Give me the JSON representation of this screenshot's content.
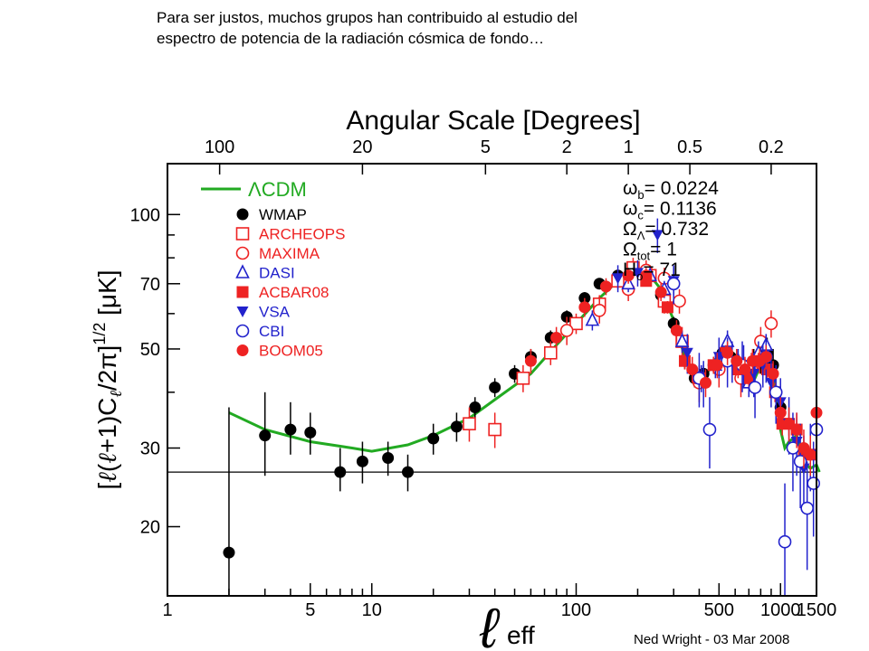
{
  "caption": {
    "line1": "Para ser justos, muchos grupos han contribuido al estudio del",
    "line2": "espectro de potencia de la radiación cósmica de fondo…"
  },
  "chart_data": {
    "type": "scatter",
    "title_top": "Angular Scale [Degrees]",
    "top_axis_ticks": [
      "100",
      "20",
      "5",
      "2",
      "1",
      "0.5",
      "0.2"
    ],
    "top_axis_ell": [
      1.8,
      9,
      36,
      90,
      180,
      360,
      900
    ],
    "x_axis_log": true,
    "y_axis_log": true,
    "xlim": [
      1,
      1500
    ],
    "ylim": [
      14,
      130
    ],
    "x_ticks": [
      1,
      5,
      10,
      100,
      500,
      1000,
      1500
    ],
    "x_tick_labels": [
      "1",
      "5",
      "10",
      "100",
      "500",
      "1000",
      "1500"
    ],
    "y_ticks": [
      20,
      30,
      50,
      70,
      100
    ],
    "y_tick_labels": [
      "20",
      "30",
      "50",
      "70",
      "100"
    ],
    "xlabel_symbol": "ℓ",
    "xlabel_sub": "eff",
    "ylabel_parts": [
      "[",
      "ℓ",
      "(",
      "ℓ",
      "+1)C",
      "ℓ",
      "/2π]",
      "1/2",
      " [μK]"
    ],
    "reference_line_y": 26.5,
    "footer": "Ned Wright - 03 Mar 2008",
    "params": [
      {
        "sym": "ω",
        "sub": "b",
        "text": "= 0.0224"
      },
      {
        "sym": "ω",
        "sub": "c",
        "text": "= 0.1136"
      },
      {
        "sym": "Ω",
        "sub": "Λ",
        "text": "= 0.732"
      },
      {
        "sym": "Ω",
        "sub": "tot",
        "text": "= 1"
      },
      {
        "sym": "H",
        "sub": "o",
        "text": "= 71"
      }
    ],
    "model": {
      "name": "ΛCDM",
      "color": "#22aa22",
      "points": [
        [
          2,
          36
        ],
        [
          3,
          33
        ],
        [
          5,
          31
        ],
        [
          8,
          30
        ],
        [
          10,
          29.5
        ],
        [
          15,
          30.5
        ],
        [
          20,
          32
        ],
        [
          30,
          35
        ],
        [
          40,
          38.5
        ],
        [
          60,
          44
        ],
        [
          80,
          51
        ],
        [
          100,
          57
        ],
        [
          130,
          65
        ],
        [
          160,
          71
        ],
        [
          200,
          74
        ],
        [
          230,
          73
        ],
        [
          260,
          68
        ],
        [
          300,
          58
        ],
        [
          350,
          46
        ],
        [
          400,
          42
        ],
        [
          450,
          45
        ],
        [
          500,
          49
        ],
        [
          550,
          50
        ],
        [
          600,
          46
        ],
        [
          660,
          42
        ],
        [
          700,
          41
        ],
        [
          750,
          43
        ],
        [
          800,
          46
        ],
        [
          850,
          48
        ],
        [
          900,
          46
        ],
        [
          950,
          40
        ],
        [
          1000,
          33
        ],
        [
          1050,
          30
        ],
        [
          1100,
          31
        ],
        [
          1200,
          32
        ],
        [
          1300,
          28
        ],
        [
          1400,
          27
        ],
        [
          1500,
          27.5
        ],
        [
          1550,
          26.5
        ]
      ]
    },
    "series": [
      {
        "name": "WMAP",
        "marker": "filled-circle",
        "color": "#000000",
        "points": [
          [
            2,
            17.5,
            14,
            37
          ],
          [
            3,
            32,
            26,
            40
          ],
          [
            4,
            33,
            29,
            38
          ],
          [
            5,
            32.5,
            29,
            36
          ],
          [
            7,
            26.5,
            24,
            30
          ],
          [
            9,
            28,
            25,
            31
          ],
          [
            12,
            28.5,
            26,
            31
          ],
          [
            15,
            26.5,
            24,
            29
          ],
          [
            20,
            31.5,
            29,
            34
          ],
          [
            26,
            33.5,
            31,
            36
          ],
          [
            32,
            37,
            35,
            39
          ],
          [
            40,
            41,
            39,
            43
          ],
          [
            50,
            44,
            42,
            46
          ],
          [
            60,
            48,
            46,
            50
          ],
          [
            75,
            53,
            51,
            55
          ],
          [
            90,
            59,
            57,
            61
          ],
          [
            110,
            65,
            63,
            67
          ],
          [
            130,
            70,
            68,
            72
          ],
          [
            160,
            73,
            71,
            75
          ],
          [
            190,
            75,
            73,
            77
          ],
          [
            220,
            72,
            70,
            74
          ],
          [
            260,
            66,
            64,
            68
          ],
          [
            300,
            57,
            55,
            59
          ],
          [
            340,
            47,
            45,
            49
          ],
          [
            380,
            43,
            41,
            45
          ],
          [
            420,
            44,
            42,
            46
          ],
          [
            470,
            46,
            44,
            48
          ],
          [
            520,
            49,
            47,
            51
          ],
          [
            570,
            48,
            46,
            50
          ],
          [
            620,
            46,
            44,
            48
          ],
          [
            680,
            44,
            41,
            47
          ],
          [
            740,
            47,
            44,
            50
          ],
          [
            800,
            47,
            44,
            50
          ],
          [
            860,
            49,
            45,
            53
          ],
          [
            920,
            46,
            42,
            50
          ],
          [
            1000,
            37,
            33,
            41
          ]
        ]
      },
      {
        "name": "ARCHEOPS",
        "marker": "open-square",
        "color": "#ee2222",
        "points": [
          [
            30,
            34,
            31,
            37
          ],
          [
            40,
            33,
            30,
            36
          ],
          [
            55,
            43,
            40,
            46
          ],
          [
            75,
            49,
            46,
            52
          ],
          [
            100,
            57,
            54,
            60
          ],
          [
            130,
            63,
            60,
            66
          ],
          [
            160,
            71,
            68,
            74
          ],
          [
            190,
            76,
            72,
            80
          ],
          [
            230,
            73,
            69,
            77
          ],
          [
            270,
            64,
            60,
            68
          ],
          [
            330,
            52,
            48,
            56
          ]
        ]
      },
      {
        "name": "MAXIMA",
        "marker": "open-circle",
        "color": "#ee2222",
        "points": [
          [
            90,
            55,
            51,
            59
          ],
          [
            130,
            61,
            57,
            65
          ],
          [
            180,
            68,
            64,
            72
          ],
          [
            220,
            75,
            71,
            79
          ],
          [
            270,
            72,
            68,
            76
          ],
          [
            320,
            64,
            60,
            68
          ],
          [
            400,
            42,
            38,
            46
          ],
          [
            500,
            45,
            41,
            49
          ],
          [
            640,
            43,
            39,
            47
          ],
          [
            720,
            45,
            41,
            49
          ],
          [
            800,
            52,
            48,
            56
          ],
          [
            900,
            57,
            53,
            61
          ]
        ]
      },
      {
        "name": "DASI",
        "marker": "open-triangle",
        "color": "#2222cc",
        "points": [
          [
            120,
            58,
            55,
            61
          ],
          [
            180,
            70,
            67,
            73
          ],
          [
            230,
            73,
            70,
            76
          ],
          [
            270,
            68,
            65,
            71
          ],
          [
            330,
            52,
            49,
            55
          ],
          [
            410,
            43,
            40,
            46
          ],
          [
            480,
            46,
            43,
            49
          ],
          [
            550,
            52,
            49,
            55
          ],
          [
            620,
            47,
            44,
            50
          ],
          [
            700,
            42,
            39,
            45
          ],
          [
            780,
            49,
            46,
            52
          ],
          [
            850,
            51,
            48,
            54
          ]
        ]
      },
      {
        "name": "ACBAR08",
        "marker": "filled-square",
        "color": "#ee2222",
        "points": [
          [
            220,
            71,
            69,
            73
          ],
          [
            280,
            62,
            60,
            64
          ],
          [
            340,
            47,
            45,
            49
          ],
          [
            400,
            43,
            41,
            45
          ],
          [
            470,
            46,
            44,
            48
          ],
          [
            540,
            49,
            47,
            51
          ],
          [
            620,
            45,
            43,
            47
          ],
          [
            700,
            43,
            41,
            45
          ],
          [
            780,
            47,
            45,
            49
          ],
          [
            860,
            45,
            43,
            47
          ],
          [
            940,
            40,
            38,
            42
          ],
          [
            1020,
            34,
            32,
            36
          ],
          [
            1100,
            34,
            32,
            36
          ],
          [
            1200,
            33,
            31,
            35
          ],
          [
            1300,
            29,
            27,
            31
          ],
          [
            1400,
            29,
            27,
            31
          ]
        ]
      },
      {
        "name": "VSA",
        "marker": "filled-triangle-down",
        "color": "#2222cc",
        "points": [
          [
            160,
            72,
            67,
            77
          ],
          [
            200,
            74,
            69,
            79
          ],
          [
            250,
            90,
            82,
            98
          ],
          [
            300,
            71,
            66,
            76
          ],
          [
            350,
            49,
            44,
            54
          ],
          [
            420,
            42,
            37,
            47
          ],
          [
            500,
            48,
            43,
            53
          ],
          [
            580,
            47,
            42,
            52
          ],
          [
            660,
            46,
            41,
            51
          ],
          [
            740,
            44,
            39,
            49
          ],
          [
            820,
            46,
            41,
            51
          ],
          [
            900,
            42,
            37,
            47
          ],
          [
            1000,
            38,
            33,
            43
          ],
          [
            1100,
            34,
            29,
            39
          ],
          [
            1200,
            31,
            26,
            36
          ],
          [
            1300,
            27,
            22,
            32
          ],
          [
            1400,
            29,
            24,
            34
          ]
        ]
      },
      {
        "name": "CBI",
        "marker": "open-circle",
        "color": "#2222cc",
        "points": [
          [
            300,
            70,
            63,
            77
          ],
          [
            400,
            43,
            37,
            49
          ],
          [
            450,
            33,
            27,
            39
          ],
          [
            550,
            47,
            41,
            53
          ],
          [
            650,
            46,
            40,
            52
          ],
          [
            750,
            41,
            35,
            47
          ],
          [
            850,
            48,
            42,
            54
          ],
          [
            950,
            40,
            34,
            46
          ],
          [
            1050,
            18.5,
            14,
            25
          ],
          [
            1150,
            30,
            24,
            36
          ],
          [
            1250,
            28,
            22,
            34
          ],
          [
            1350,
            22,
            16,
            28
          ],
          [
            1450,
            25,
            19,
            31
          ],
          [
            1500,
            33,
            27,
            39
          ]
        ]
      },
      {
        "name": "BOOM05",
        "marker": "filled-circle",
        "color": "#ee2222",
        "points": [
          [
            60,
            47,
            44,
            50
          ],
          [
            80,
            53,
            50,
            56
          ],
          [
            110,
            62,
            59,
            65
          ],
          [
            140,
            69,
            66,
            72
          ],
          [
            180,
            73,
            70,
            76
          ],
          [
            220,
            73,
            70,
            76
          ],
          [
            260,
            67,
            64,
            70
          ],
          [
            310,
            55,
            52,
            58
          ],
          [
            370,
            45,
            42,
            48
          ],
          [
            430,
            42,
            39,
            45
          ],
          [
            490,
            46,
            43,
            49
          ],
          [
            550,
            49,
            46,
            52
          ],
          [
            610,
            47,
            44,
            50
          ],
          [
            670,
            45,
            42,
            48
          ],
          [
            730,
            47,
            44,
            50
          ],
          [
            790,
            47,
            44,
            50
          ],
          [
            850,
            48,
            45,
            51
          ],
          [
            920,
            44,
            41,
            47
          ],
          [
            1000,
            36,
            33,
            39
          ],
          [
            1100,
            34,
            31,
            37
          ],
          [
            1200,
            33,
            30,
            36
          ],
          [
            1300,
            30,
            27,
            33
          ],
          [
            1400,
            29,
            26,
            32
          ],
          [
            1500,
            36,
            33,
            39
          ]
        ]
      }
    ]
  }
}
